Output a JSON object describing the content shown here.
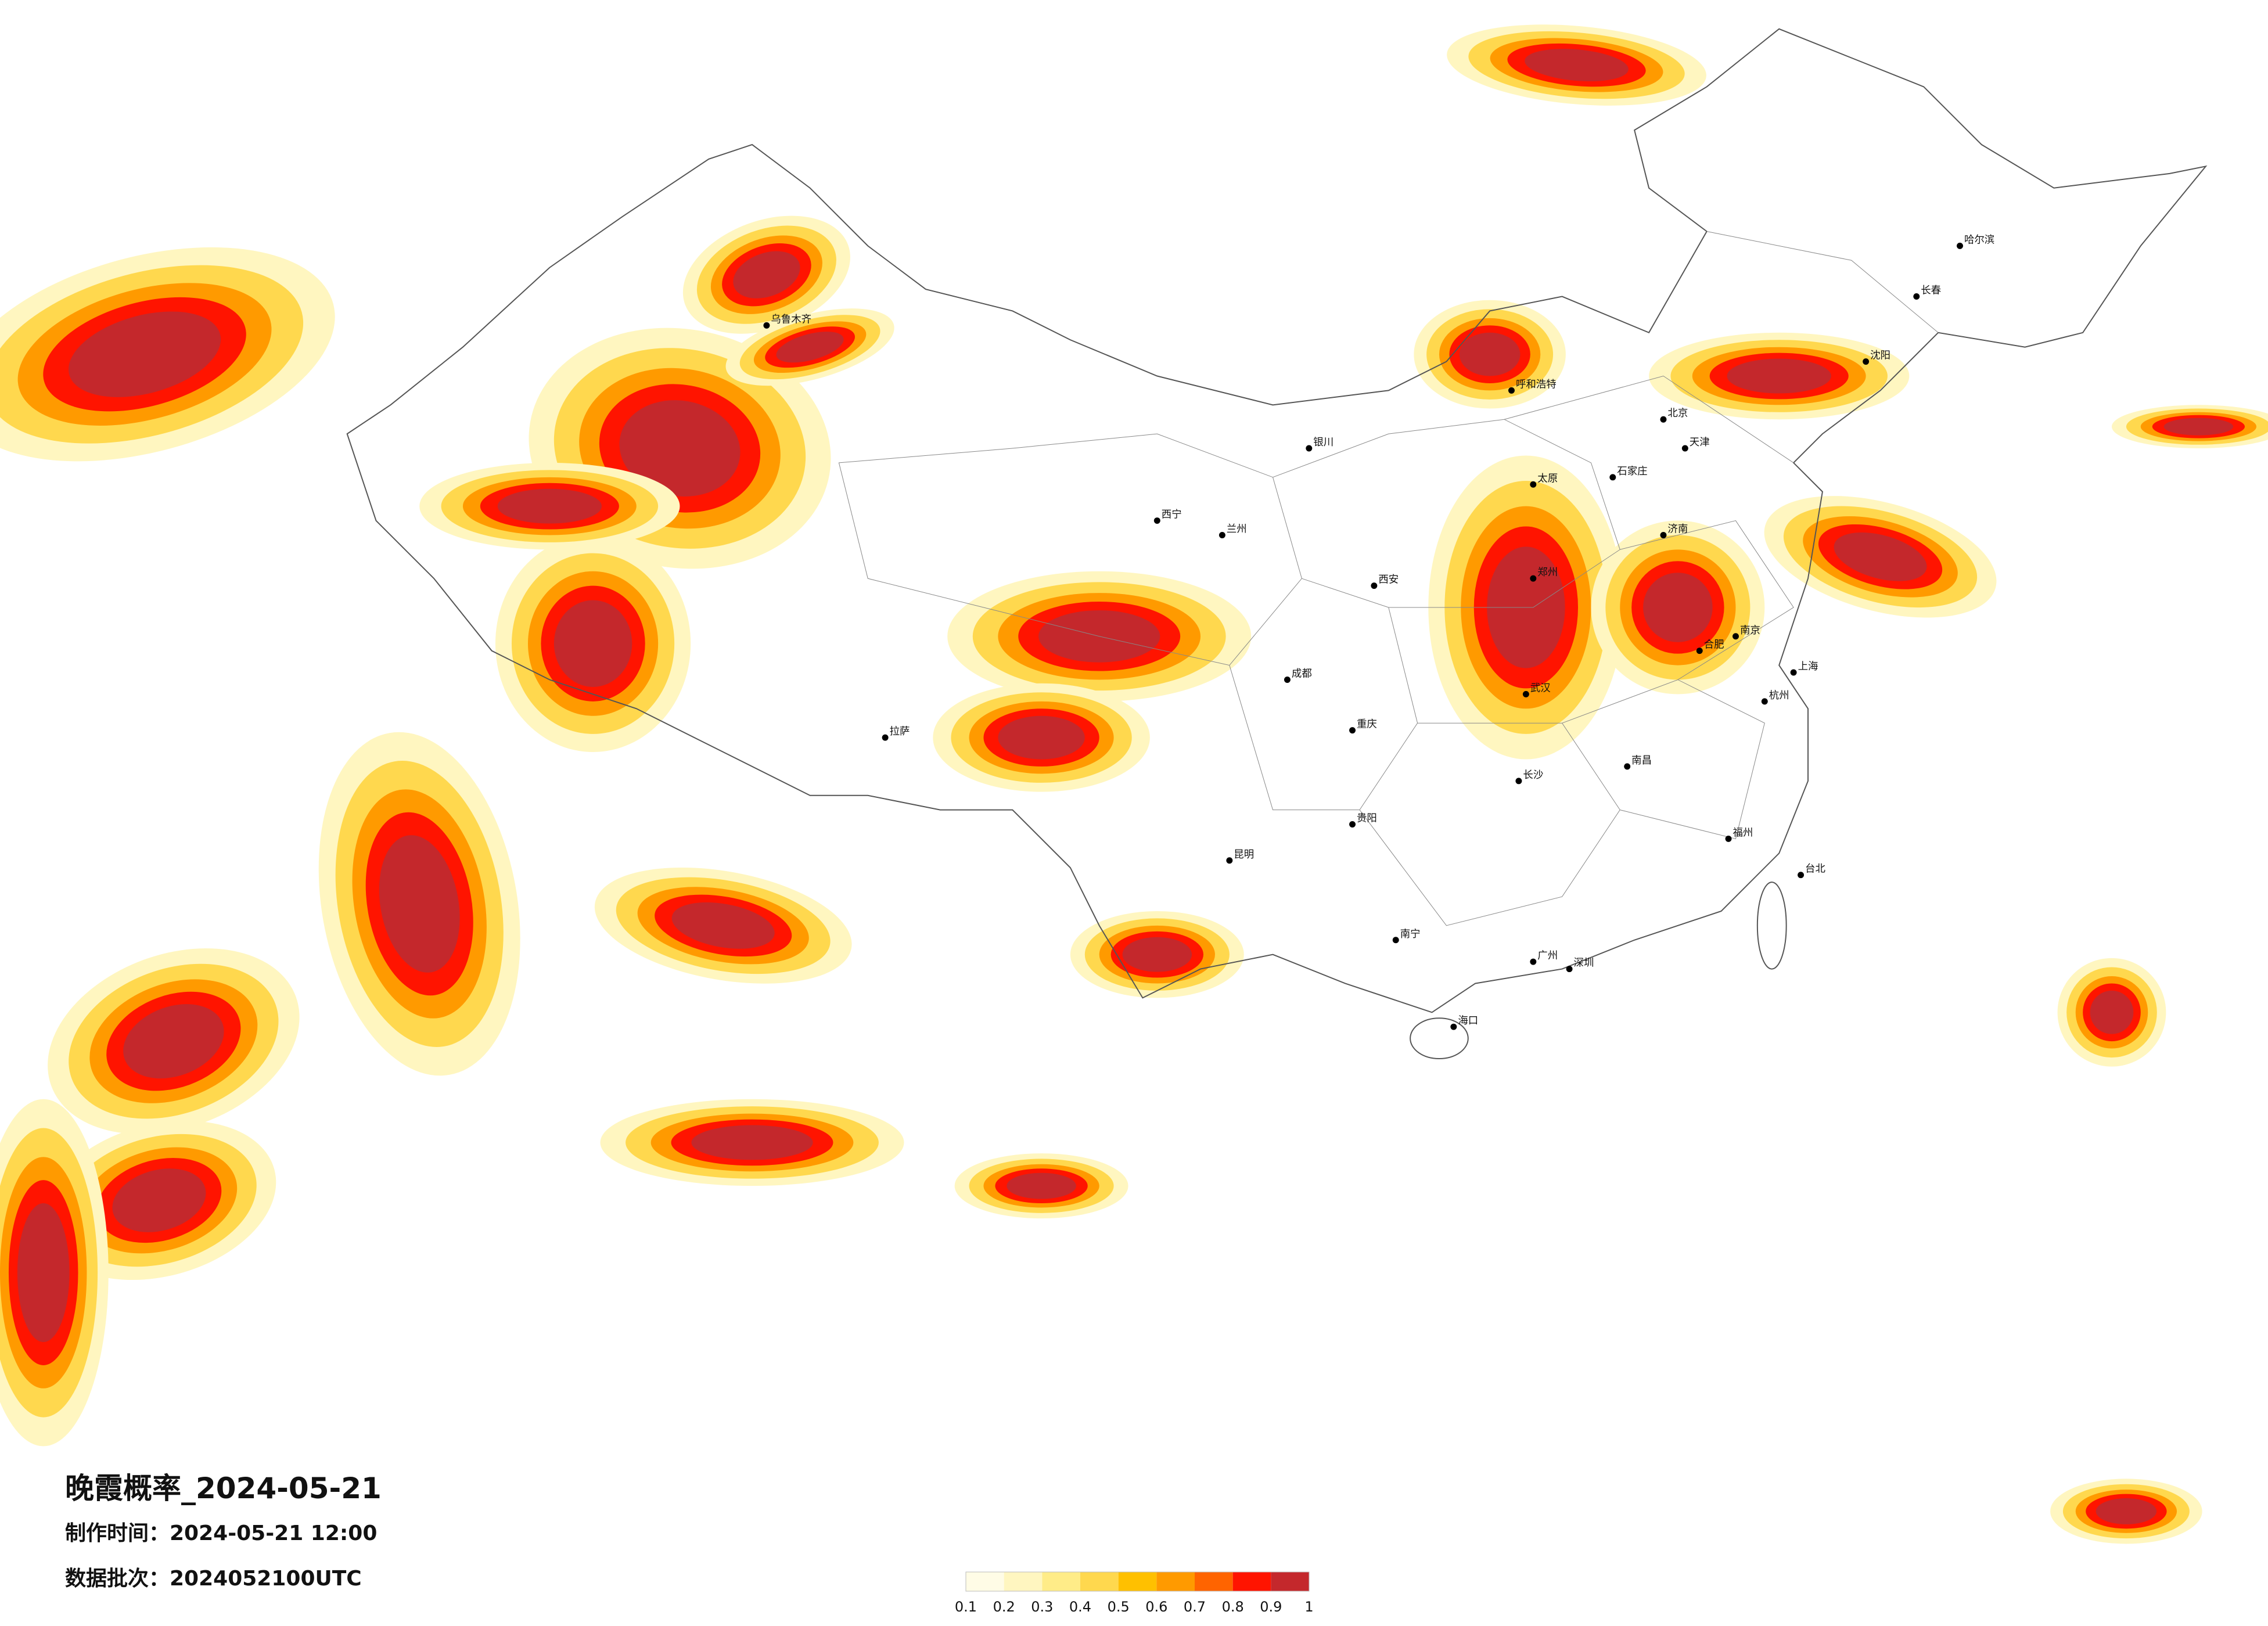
{
  "map": {
    "title": "晚霞概率_2024-05-21",
    "production_time": "制作时间：2024-05-21 12:00",
    "data_batch": "数据批次：2024052100UTC",
    "legend": {
      "ticks": [
        0.1,
        0.2,
        0.3,
        0.4,
        0.5,
        0.6,
        0.7,
        0.8,
        0.9,
        1
      ],
      "colors": [
        "#fffce6",
        "#fff6c0",
        "#ffec88",
        "#ffd84e",
        "#ffc000",
        "#ff9a00",
        "#ff6400",
        "#ff1400",
        "#c4282c"
      ]
    },
    "cities": [
      "北京",
      "天津",
      "上海",
      "广州",
      "深圳",
      "重庆",
      "成都",
      "武汉",
      "西安",
      "郑州",
      "南京",
      "杭州",
      "长沙",
      "昆明",
      "贵阳",
      "南宁",
      "拉萨",
      "乌鲁木齐",
      "哈尔滨",
      "长春",
      "沈阳",
      "呼和浩特",
      "兰州",
      "西宁",
      "银川",
      "海口",
      "台北",
      "福州",
      "南昌",
      "合肥",
      "济南",
      "石家庄",
      "太原"
    ]
  }
}
